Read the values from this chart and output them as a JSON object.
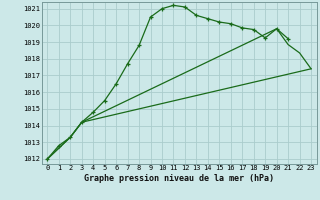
{
  "title": "Graphe pression niveau de la mer (hPa)",
  "background_color": "#cce8e8",
  "grid_color": "#aacccc",
  "line_color": "#1a6b1a",
  "series1_x": [
    0,
    1,
    2,
    3,
    4,
    5,
    6,
    7,
    8,
    9,
    10,
    11,
    12,
    13,
    14,
    15,
    16,
    17,
    18,
    19,
    20,
    21
  ],
  "series1_y": [
    1012.0,
    1012.8,
    1013.3,
    1014.2,
    1014.8,
    1015.5,
    1016.5,
    1017.7,
    1018.8,
    1020.5,
    1021.0,
    1021.2,
    1021.1,
    1020.6,
    1020.4,
    1020.2,
    1020.1,
    1019.85,
    1019.75,
    1019.25,
    1019.8,
    1019.2
  ],
  "series2_pts": [
    [
      0,
      1012.0
    ],
    [
      2,
      1013.3
    ],
    [
      3,
      1014.2
    ],
    [
      20,
      1019.8
    ],
    [
      21,
      1018.85
    ],
    [
      22,
      1018.35
    ],
    [
      23,
      1017.4
    ]
  ],
  "series3_pts": [
    [
      0,
      1012.0
    ],
    [
      2,
      1013.3
    ],
    [
      3,
      1014.2
    ],
    [
      23,
      1017.4
    ]
  ],
  "ylim": [
    1011.7,
    1021.4
  ],
  "xlim": [
    -0.5,
    23.5
  ],
  "yticks": [
    1012,
    1013,
    1014,
    1015,
    1016,
    1017,
    1018,
    1019,
    1020,
    1021
  ],
  "xticks": [
    0,
    1,
    2,
    3,
    4,
    5,
    6,
    7,
    8,
    9,
    10,
    11,
    12,
    13,
    14,
    15,
    16,
    17,
    18,
    19,
    20,
    21,
    22,
    23
  ],
  "tick_fontsize": 5.0,
  "xlabel_fontsize": 6.0
}
